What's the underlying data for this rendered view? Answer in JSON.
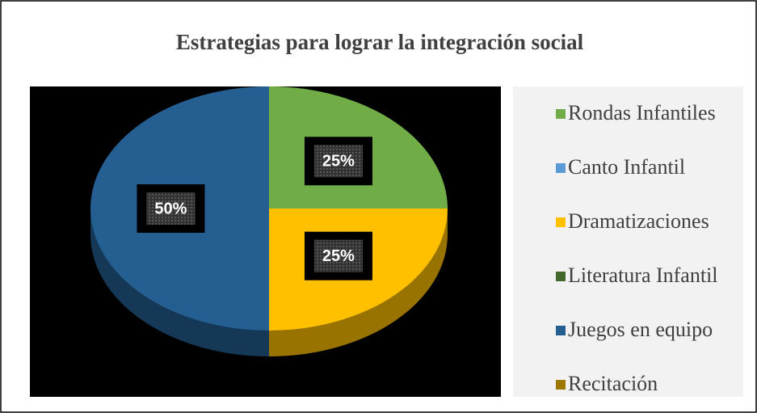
{
  "chart_data": {
    "type": "pie",
    "title": "Estrategias para lograr la integración social",
    "categories": [
      "Rondas Infantiles",
      "Canto Infantil",
      "Dramatizaciones",
      "Literatura Infantil",
      "Juegos en equipo",
      "Recitación"
    ],
    "values": [
      25,
      0,
      25,
      0,
      50,
      0
    ],
    "value_labels": [
      "25%",
      null,
      "25%",
      null,
      "50%",
      null
    ],
    "colors": [
      "#70ad47",
      "#5b9bd5",
      "#ffc000",
      "#43682b",
      "#255e91",
      "#9e7700"
    ],
    "legend": "right"
  }
}
